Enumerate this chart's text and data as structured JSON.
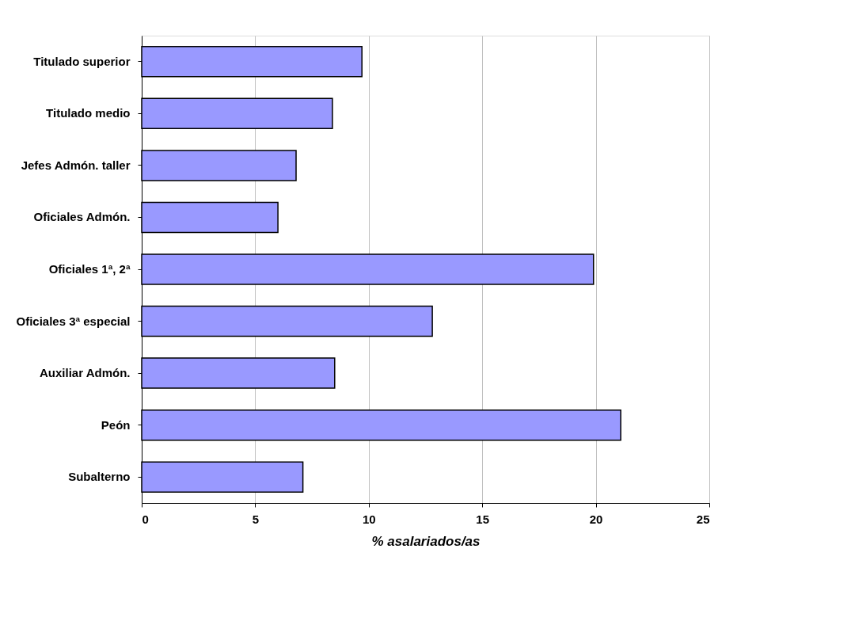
{
  "chart_data": {
    "type": "bar",
    "orientation": "horizontal",
    "xlabel": "% asalariados/as",
    "categories": [
      "Titulado superior",
      "Titulado medio",
      "Jefes Admón. taller",
      "Oficiales Admón.",
      "Oficiales 1ª, 2ª",
      "Oficiales 3ª especial",
      "Auxiliar Admón.",
      "Peón",
      "Subalterno"
    ],
    "values": [
      9.7,
      8.4,
      6.8,
      6.0,
      19.9,
      12.8,
      8.5,
      21.1,
      7.1
    ],
    "color": "#9999ff",
    "xlim": [
      0,
      25
    ],
    "xticks": [
      0,
      5,
      10,
      15,
      20,
      25
    ],
    "grid": "x"
  }
}
